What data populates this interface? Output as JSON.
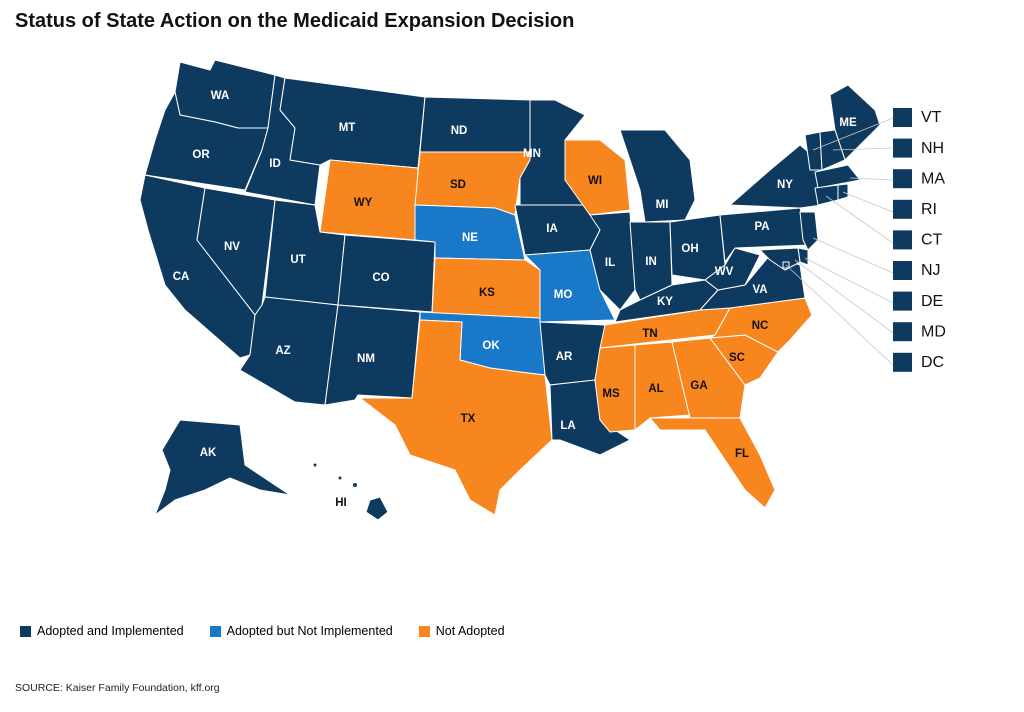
{
  "title": "Status of State Action on the Medicaid Expansion Decision",
  "colors": {
    "adopted_implemented": "#0e3a60",
    "adopted_not_implemented": "#1a78c8",
    "not_adopted": "#f7861f"
  },
  "legend": [
    {
      "label": "Adopted and Implemented",
      "status": "adopted_implemented"
    },
    {
      "label": "Adopted but Not Implemented",
      "status": "adopted_not_implemented"
    },
    {
      "label": "Not Adopted",
      "status": "not_adopted"
    }
  ],
  "source": "SOURCE: Kaiser Family Foundation, kff.org",
  "states": {
    "WA": "adopted_implemented",
    "OR": "adopted_implemented",
    "CA": "adopted_implemented",
    "ID": "adopted_implemented",
    "NV": "adopted_implemented",
    "MT": "adopted_implemented",
    "WY": "not_adopted",
    "UT": "adopted_implemented",
    "AZ": "adopted_implemented",
    "CO": "adopted_implemented",
    "NM": "adopted_implemented",
    "ND": "adopted_implemented",
    "SD": "not_adopted",
    "NE": "adopted_not_implemented",
    "KS": "not_adopted",
    "OK": "adopted_not_implemented",
    "TX": "not_adopted",
    "MN": "adopted_implemented",
    "IA": "adopted_implemented",
    "MO": "adopted_not_implemented",
    "AR": "adopted_implemented",
    "LA": "adopted_implemented",
    "WI": "not_adopted",
    "IL": "adopted_implemented",
    "MI": "adopted_implemented",
    "IN": "adopted_implemented",
    "OH": "adopted_implemented",
    "KY": "adopted_implemented",
    "TN": "not_adopted",
    "MS": "not_adopted",
    "AL": "not_adopted",
    "GA": "not_adopted",
    "FL": "not_adopted",
    "SC": "not_adopted",
    "NC": "not_adopted",
    "VA": "adopted_implemented",
    "WV": "adopted_implemented",
    "PA": "adopted_implemented",
    "NY": "adopted_implemented",
    "ME": "adopted_implemented",
    "AK": "adopted_implemented",
    "HI": "adopted_implemented",
    "VT": "adopted_implemented",
    "NH": "adopted_implemented",
    "MA": "adopted_implemented",
    "RI": "adopted_implemented",
    "CT": "adopted_implemented",
    "NJ": "adopted_implemented",
    "DE": "adopted_implemented",
    "MD": "adopted_implemented",
    "DC": "adopted_implemented"
  },
  "small_states_labels": [
    "VT",
    "NH",
    "MA",
    "RI",
    "CT",
    "NJ",
    "DE",
    "MD",
    "DC"
  ]
}
